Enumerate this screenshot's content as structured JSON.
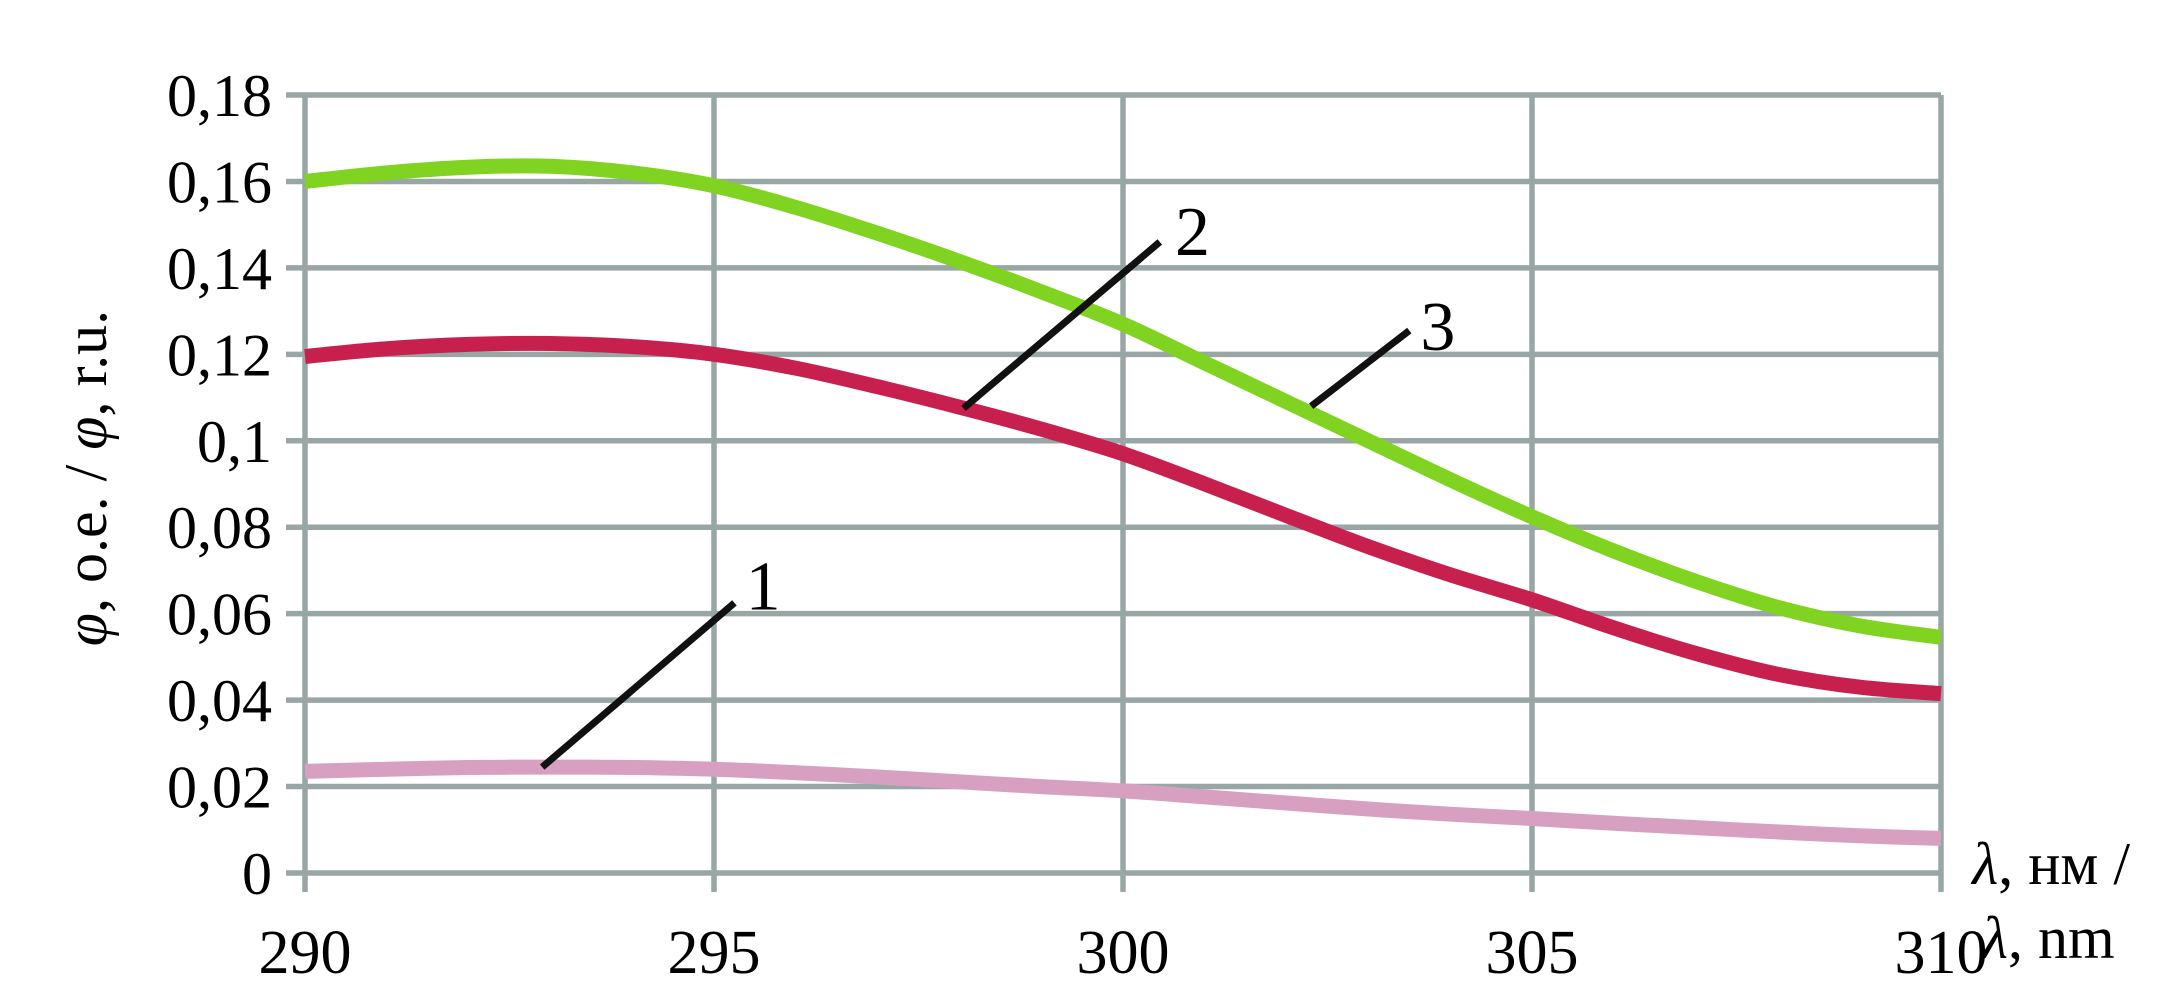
{
  "figure": {
    "background": "#ffffff",
    "grid_color": "#98a7a5",
    "leader_line_color": "#111111",
    "text_color": "#000000"
  },
  "chart_data": {
    "type": "line",
    "title": "",
    "xlabel": "λ, нм / λ, nm",
    "ylabel": "φ, o.e. / φ, r.u.",
    "xlabel_lines": [
      {
        "parts": [
          {
            "text": "λ",
            "italic": true
          },
          {
            "text": ", нм /",
            "italic": false
          }
        ]
      },
      {
        "parts": [
          {
            "text": "λ",
            "italic": true
          },
          {
            "text": ", nm",
            "italic": false
          }
        ]
      }
    ],
    "ylabel_parts": [
      {
        "text": "φ",
        "italic": true
      },
      {
        "text": ", o.e. / ",
        "italic": false
      },
      {
        "text": "φ",
        "italic": true
      },
      {
        "text": ", r.u.",
        "italic": false
      }
    ],
    "xlim": [
      290,
      310
    ],
    "ylim": [
      0,
      0.18
    ],
    "grid": true,
    "legend": "none",
    "x_ticks": [
      {
        "value": 290,
        "label": "290"
      },
      {
        "value": 295,
        "label": "295"
      },
      {
        "value": 300,
        "label": "300"
      },
      {
        "value": 305,
        "label": "305"
      },
      {
        "value": 310,
        "label": "310"
      }
    ],
    "y_ticks": [
      {
        "value": 0,
        "label": "0"
      },
      {
        "value": 0.02,
        "label": "0,02"
      },
      {
        "value": 0.04,
        "label": "0,04"
      },
      {
        "value": 0.06,
        "label": "0,06"
      },
      {
        "value": 0.08,
        "label": "0,08"
      },
      {
        "value": 0.1,
        "label": "0,1"
      },
      {
        "value": 0.12,
        "label": "0,12"
      },
      {
        "value": 0.14,
        "label": "0,14"
      },
      {
        "value": 0.16,
        "label": "0,16"
      },
      {
        "value": 0.18,
        "label": "0,18"
      }
    ],
    "x": [
      290,
      291,
      292,
      293,
      294,
      295,
      296,
      297,
      298,
      299,
      300,
      301,
      302,
      303,
      304,
      305,
      306,
      307,
      308,
      309,
      310
    ],
    "series": [
      {
        "name": "1",
        "color": "#d7a0c0",
        "values": [
          0.0235,
          0.024,
          0.0244,
          0.0245,
          0.0244,
          0.024,
          0.0232,
          0.0222,
          0.0211,
          0.02,
          0.019,
          0.0176,
          0.0162,
          0.0148,
          0.0136,
          0.0126,
          0.0115,
          0.0105,
          0.0095,
          0.0086,
          0.008
        ]
      },
      {
        "name": "2",
        "color": "#c8204e",
        "values": [
          0.1195,
          0.1213,
          0.1223,
          0.1225,
          0.1218,
          0.12,
          0.1168,
          0.1125,
          0.1078,
          0.1027,
          0.097,
          0.09,
          0.0827,
          0.0755,
          0.069,
          0.0632,
          0.0567,
          0.0508,
          0.046,
          0.043,
          0.0415
        ]
      },
      {
        "name": "3",
        "color": "#80d321",
        "values": [
          0.16,
          0.162,
          0.1633,
          0.1635,
          0.162,
          0.159,
          0.154,
          0.148,
          0.1415,
          0.1345,
          0.127,
          0.118,
          0.109,
          0.1,
          0.091,
          0.0824,
          0.0745,
          0.0675,
          0.0615,
          0.0572,
          0.0545
        ]
      }
    ],
    "annotations": [
      {
        "label": "1",
        "text_x": 295.6,
        "text_y": 0.0665,
        "line": [
          [
            292.9,
            0.0245
          ],
          [
            295.25,
            0.0625
          ]
        ]
      },
      {
        "label": "2",
        "text_x": 300.85,
        "text_y": 0.1485,
        "line": [
          [
            298.05,
            0.1075
          ],
          [
            300.45,
            0.146
          ]
        ]
      },
      {
        "label": "3",
        "text_x": 303.85,
        "text_y": 0.1265,
        "line": [
          [
            302.3,
            0.108
          ],
          [
            303.5,
            0.1255
          ]
        ]
      }
    ]
  }
}
